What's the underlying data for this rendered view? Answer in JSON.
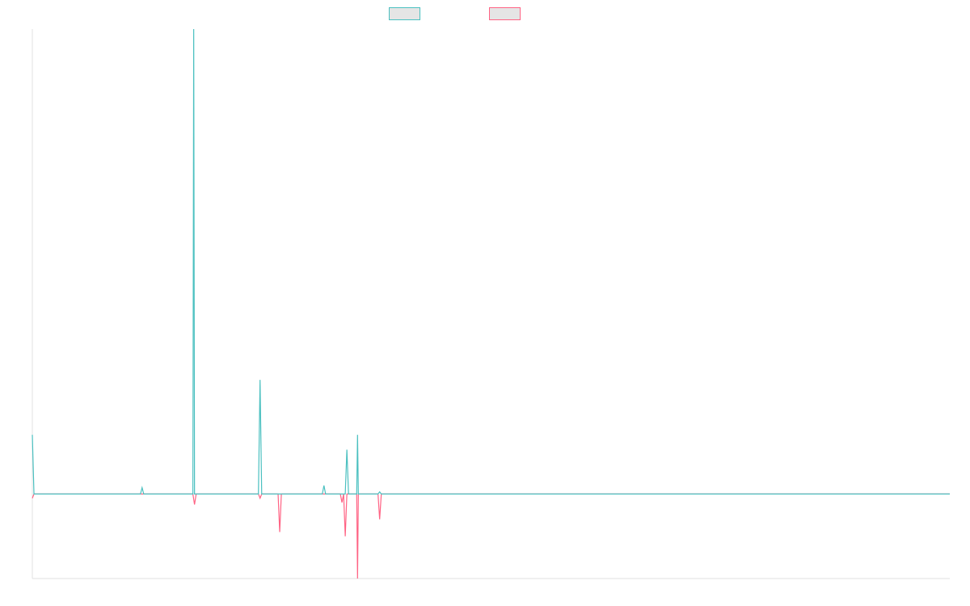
{
  "chart_data": {
    "type": "line",
    "title": "",
    "xlabel": "",
    "ylabel": "",
    "grid": false,
    "legend_position": "top-center",
    "y_range": [
      -20,
      110
    ],
    "x": [
      0,
      1,
      2,
      3,
      4,
      5,
      6,
      7,
      8,
      9,
      10,
      11,
      12,
      13,
      14,
      15,
      16,
      17,
      18,
      19,
      20,
      21,
      22,
      23,
      24,
      25,
      26,
      27,
      28,
      29,
      30,
      31,
      32,
      33,
      34,
      35,
      36,
      37,
      38,
      39,
      40,
      41,
      42,
      43,
      44,
      45,
      46,
      47,
      48,
      49,
      50,
      51,
      52,
      53,
      54,
      55,
      56,
      57,
      58,
      59,
      60,
      61,
      62,
      63,
      64,
      65,
      66,
      67,
      68,
      69,
      70,
      71,
      72,
      73,
      74,
      75,
      76,
      77,
      78,
      79,
      80,
      81,
      82,
      83,
      84,
      85,
      86,
      87,
      88,
      89,
      90,
      91,
      92,
      93,
      94,
      95,
      96,
      97,
      98,
      99,
      100,
      101,
      102,
      103,
      104,
      105,
      106,
      107,
      108,
      109,
      110,
      111,
      112,
      113,
      114,
      115,
      116,
      117,
      117.5,
      118,
      119,
      120,
      121,
      122,
      123,
      124,
      125,
      126,
      127,
      128,
      129,
      130,
      131,
      132,
      133,
      134,
      135,
      136,
      137,
      138,
      139,
      140,
      141,
      142,
      143,
      144,
      145,
      146,
      147,
      148,
      149,
      150,
      151,
      152,
      153,
      154,
      155,
      156,
      157,
      158,
      159,
      160,
      161,
      162,
      163,
      164,
      165,
      166,
      167,
      168,
      169,
      170,
      171,
      172,
      173,
      174,
      175,
      176,
      177,
      178,
      179,
      180,
      181,
      182,
      183,
      184,
      185,
      186,
      187,
      188,
      189,
      190,
      191,
      192,
      193,
      194,
      195,
      196,
      197,
      198,
      199,
      200,
      201,
      202,
      203,
      204,
      205,
      206,
      207,
      208,
      209,
      210,
      211,
      212,
      213,
      214,
      215,
      216,
      217,
      218,
      219,
      220,
      221,
      222,
      223,
      224,
      225,
      226,
      227,
      228,
      229,
      230,
      231,
      232,
      233,
      234,
      235,
      236,
      237,
      238,
      239,
      240,
      241,
      242,
      243,
      244,
      245,
      246,
      247,
      248,
      249,
      250,
      251,
      252,
      253,
      254,
      255,
      256,
      257,
      258,
      259,
      260,
      261,
      262,
      263,
      264,
      265,
      266,
      267,
      268,
      269,
      270,
      271,
      272,
      273,
      274,
      275,
      276,
      277,
      278,
      279,
      280,
      281,
      282,
      283,
      284,
      285,
      286,
      287,
      288,
      289,
      290,
      291,
      292,
      293,
      294,
      295,
      296,
      297,
      298,
      299,
      300,
      301,
      302,
      303,
      304,
      305,
      306,
      307,
      308,
      309,
      310,
      311,
      312,
      313,
      314,
      315,
      316,
      317,
      318,
      319,
      320,
      321,
      322,
      323,
      324,
      325,
      326,
      327,
      328,
      329,
      330,
      331,
      332,
      333,
      334,
      335,
      336,
      337,
      338,
      339,
      340,
      341,
      342,
      343,
      344,
      345,
      346,
      347,
      348,
      349,
      350,
      351,
      352,
      353,
      354,
      355,
      356,
      357,
      358,
      359,
      360,
      361,
      362,
      363,
      364,
      365,
      366,
      367,
      368,
      369,
      370,
      371,
      372,
      373,
      374,
      375,
      376,
      377,
      378,
      379,
      380,
      381,
      382,
      383,
      384,
      385,
      386,
      387,
      388,
      389,
      390,
      391,
      392,
      393,
      394,
      395,
      396,
      397,
      398,
      399,
      400,
      401,
      402,
      403,
      404,
      405,
      406,
      407,
      408,
      409,
      410,
      411,
      412,
      413,
      414,
      415,
      416,
      417,
      418,
      419,
      420,
      421,
      422,
      423,
      424,
      425,
      426,
      427,
      428,
      429,
      430,
      431,
      432,
      433,
      434,
      435,
      436,
      437,
      438,
      439,
      440,
      441,
      442,
      443,
      444,
      445,
      446,
      447,
      448,
      449,
      450,
      451,
      452,
      453,
      454,
      455,
      456,
      457,
      458,
      459,
      460,
      461,
      462,
      463,
      464,
      465,
      466,
      467,
      468,
      469,
      470,
      471,
      472,
      473,
      474,
      475,
      476,
      477,
      478,
      479,
      480,
      481,
      482,
      483,
      484,
      485,
      486,
      487,
      488,
      489,
      490,
      491,
      492,
      493,
      494,
      495,
      496,
      497,
      498,
      499,
      500,
      501,
      502,
      503,
      504,
      505,
      506,
      507,
      508,
      509,
      510,
      511,
      512,
      513,
      514,
      515,
      516,
      517,
      518,
      519,
      520,
      521,
      522,
      523,
      524,
      525,
      526,
      527,
      528,
      529,
      530,
      531,
      532,
      533,
      534,
      535,
      536,
      537,
      538,
      539,
      540,
      541,
      542,
      543,
      544,
      545,
      546,
      547,
      548,
      549,
      550,
      551,
      552,
      553,
      554,
      555,
      556,
      557,
      558,
      559,
      560
    ],
    "series": [
      {
        "color": "#4bc0c0",
        "points": [
          [
            0,
            14
          ],
          [
            1,
            0
          ],
          [
            66,
            0
          ],
          [
            67,
            1.5
          ],
          [
            68,
            0
          ],
          [
            97,
            0
          ],
          [
            98,
            0
          ],
          [
            98.5,
            110
          ],
          [
            99,
            0
          ],
          [
            100,
            0
          ],
          [
            138,
            0
          ],
          [
            139,
            27
          ],
          [
            140,
            0
          ],
          [
            177,
            0
          ],
          [
            178,
            2
          ],
          [
            179,
            0
          ],
          [
            191,
            0
          ],
          [
            192,
            10.5
          ],
          [
            193,
            0
          ],
          [
            198,
            0
          ],
          [
            198.5,
            14
          ],
          [
            199,
            0
          ],
          [
            211,
            0
          ],
          [
            212,
            0.5
          ],
          [
            213,
            0
          ],
          [
            560,
            0
          ]
        ]
      },
      {
        "color": "#ff6384",
        "points": [
          [
            0,
            -1
          ],
          [
            1,
            0
          ],
          [
            98,
            0
          ],
          [
            99,
            -2.5
          ],
          [
            100,
            0
          ],
          [
            138,
            0
          ],
          [
            139,
            -1
          ],
          [
            140,
            0
          ],
          [
            150,
            0
          ],
          [
            151,
            -9
          ],
          [
            152,
            0
          ],
          [
            188,
            0
          ],
          [
            189,
            -2
          ],
          [
            190,
            0
          ],
          [
            191,
            -10
          ],
          [
            192,
            0
          ],
          [
            198,
            0
          ],
          [
            198.5,
            -20
          ],
          [
            199,
            0
          ],
          [
            211,
            0
          ],
          [
            212,
            -6
          ],
          [
            213,
            0
          ],
          [
            560,
            0
          ]
        ]
      }
    ]
  }
}
